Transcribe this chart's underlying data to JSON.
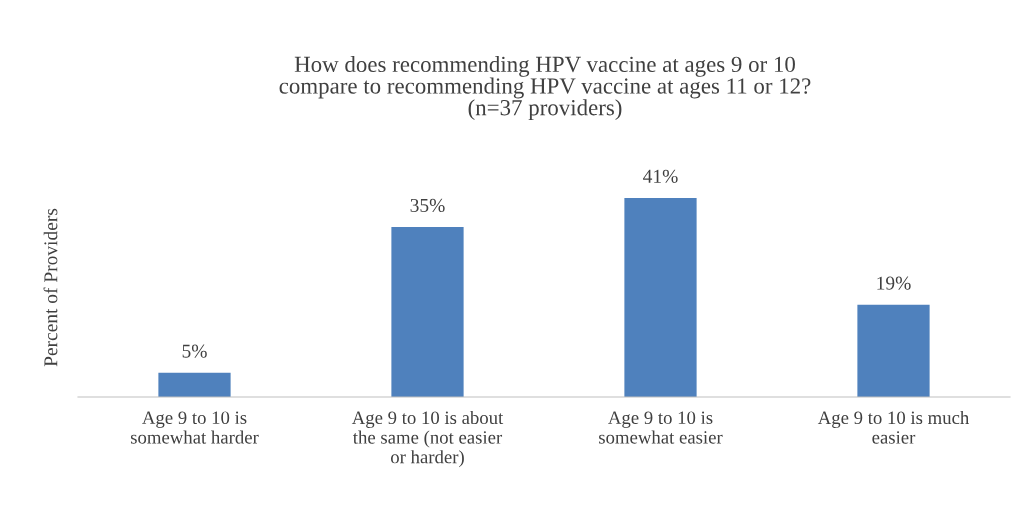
{
  "chart_data": {
    "type": "bar",
    "title": "How does recommending HPV vaccine at ages 9 or 10 compare to recommending HPV vaccine at ages 11 or 12? (n=37 providers)",
    "ylabel": "Percent of Providers",
    "categories": [
      "Age 9 to 10 is somewhat harder",
      "Age 9 to 10 is about the same (not easier or harder)",
      "Age 9 to 10 is somewhat easier",
      "Age 9 to 10 is much easier"
    ],
    "values": [
      5,
      35,
      41,
      19
    ],
    "value_labels": [
      "5%",
      "35%",
      "41%",
      "19%"
    ],
    "color": "#4f81bd",
    "grid": false,
    "legend": false
  }
}
